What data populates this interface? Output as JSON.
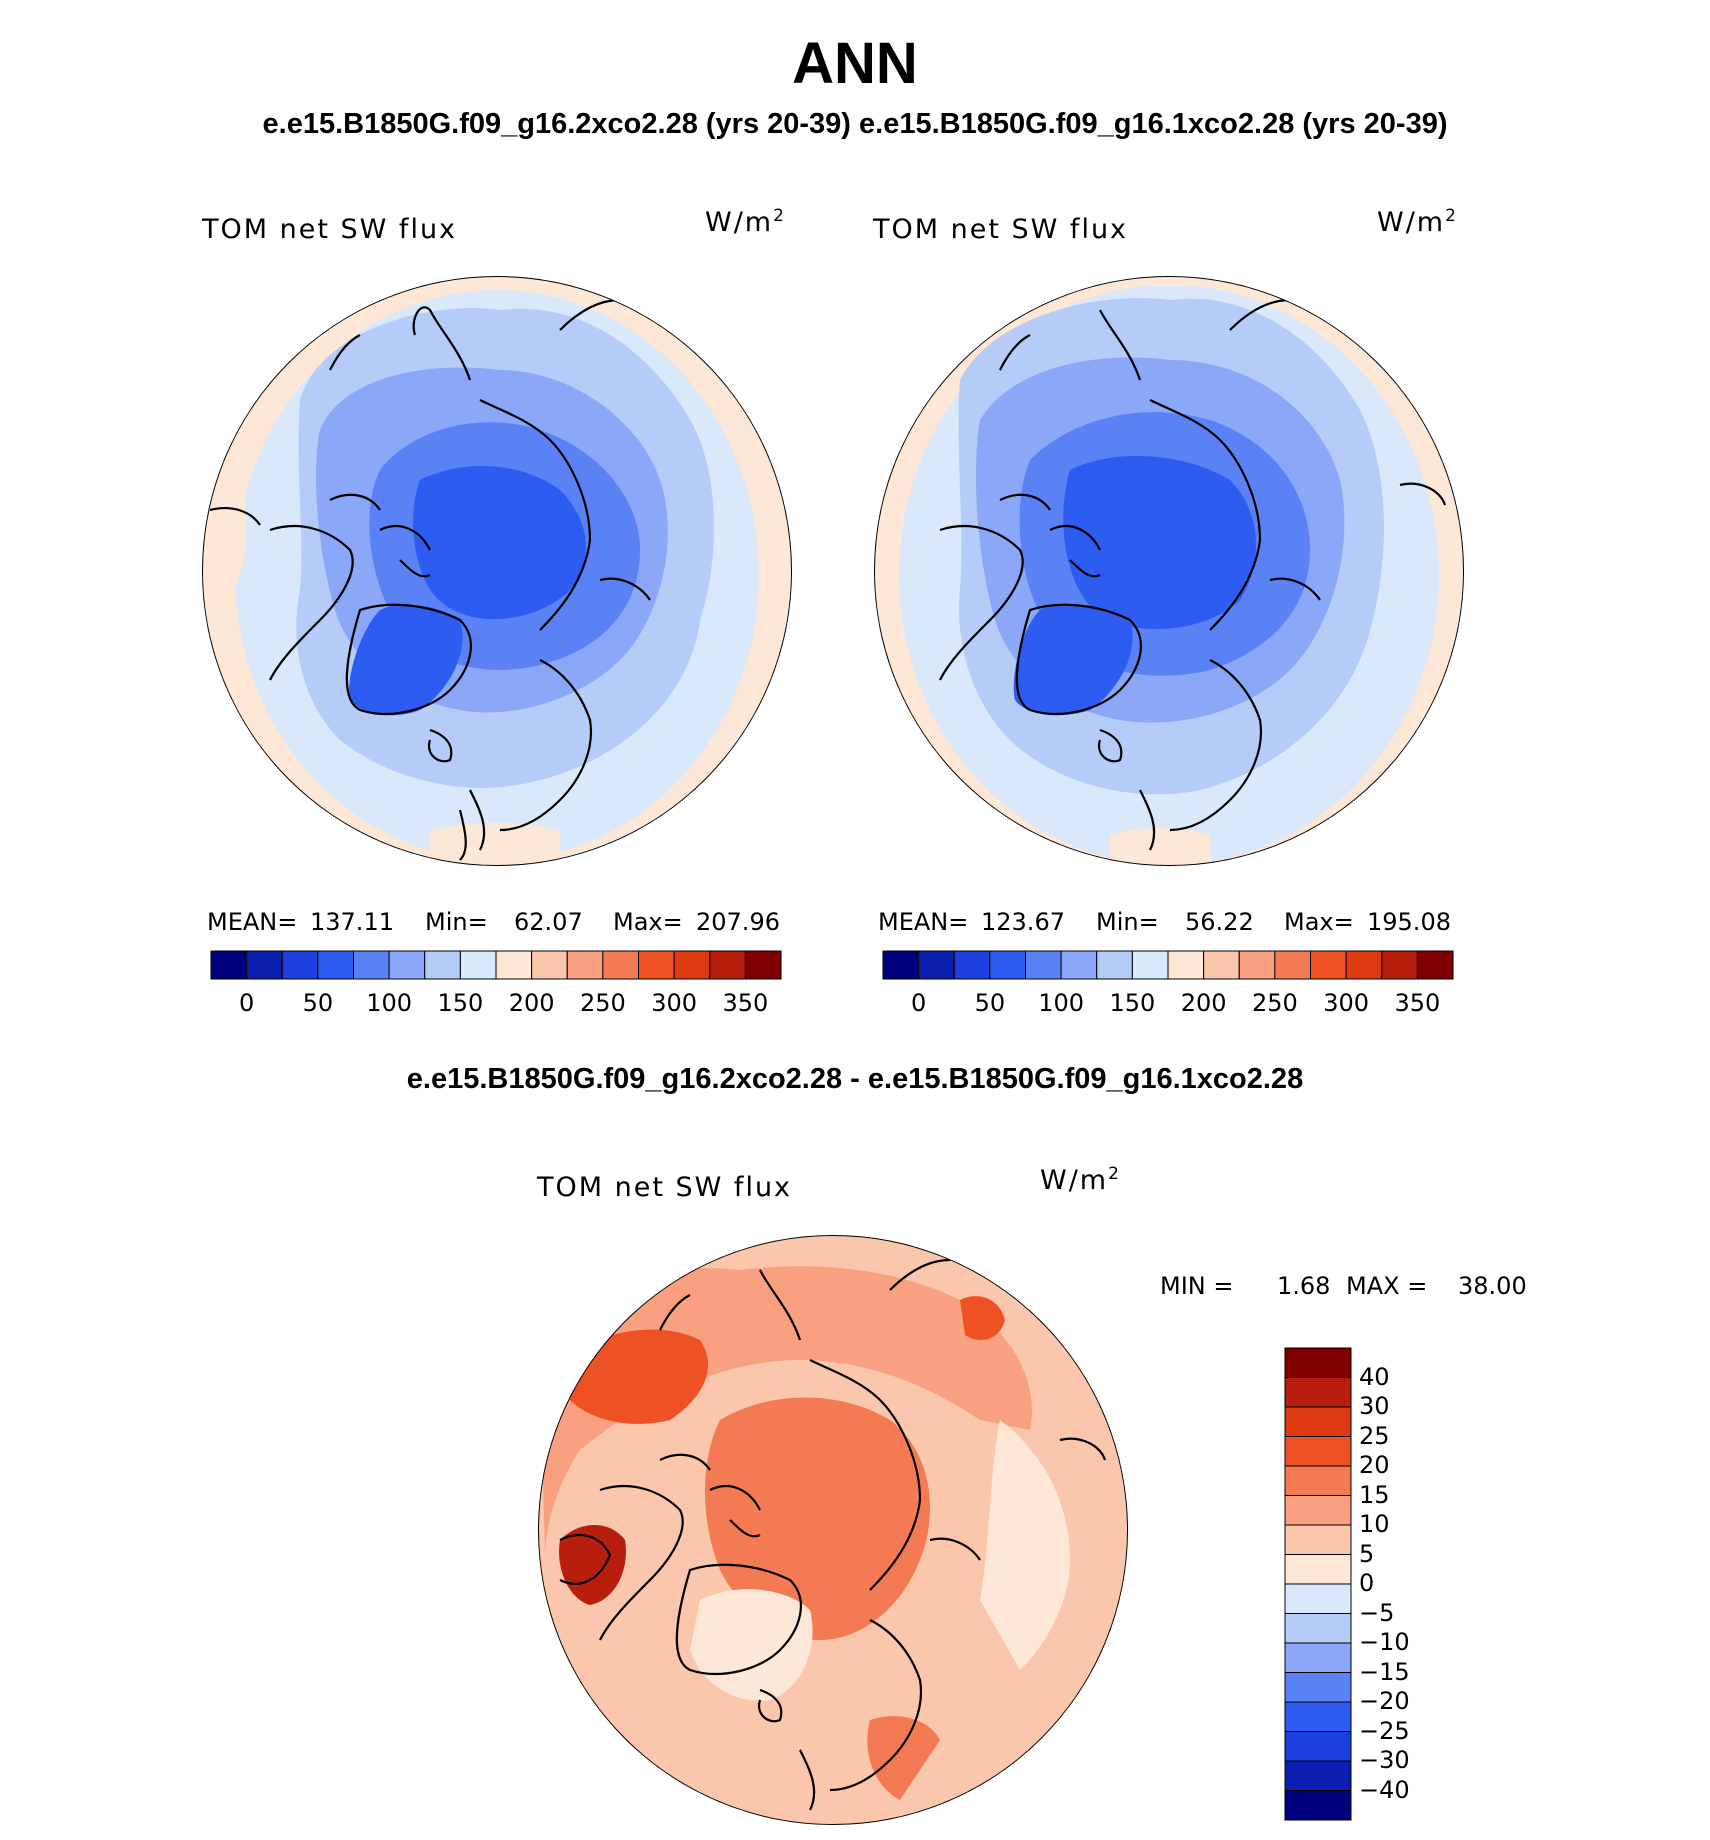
{
  "figure": {
    "title": "ANN",
    "cases_title": "e.e15.B1850G.f09_g16.2xco2.28 (yrs 20-39) e.e15.B1850G.f09_g16.1xco2.28 (yrs 20-39)",
    "diff_title": "e.e15.B1850G.f09_g16.2xco2.28 - e.e15.B1850G.f09_g16.1xco2.28"
  },
  "panels": [
    {
      "variable": "TOM net SW flux",
      "units": "W/m",
      "units_exp": "2",
      "mean_label": "MEAN=",
      "mean": "137.11",
      "min_label": "Min=",
      "min": "62.07",
      "max_label": "Max=",
      "max": "207.96"
    },
    {
      "variable": "TOM net SW flux",
      "units": "W/m",
      "units_exp": "2",
      "mean_label": "MEAN=",
      "mean": "123.67",
      "min_label": "Min=",
      "min": "56.22",
      "max_label": "Max=",
      "max": "195.08"
    }
  ],
  "diff_panel": {
    "variable": "TOM net SW flux",
    "units": "W/m",
    "units_exp": "2",
    "min_label": "MIN =",
    "min": "1.68",
    "max_label": "MAX =",
    "max": "38.00"
  },
  "abs_colorbar": {
    "tick_labels": [
      "0",
      "50",
      "100",
      "150",
      "200",
      "250",
      "300",
      "350"
    ],
    "colors": [
      "#00007f",
      "#0a1fb0",
      "#1e3fe0",
      "#2d5cf0",
      "#5a82f5",
      "#8aa8f7",
      "#b5cbf8",
      "#d9e8fb",
      "#fde7d6",
      "#fbc7ac",
      "#f8a07f",
      "#f47a53",
      "#ee5224",
      "#dd3a12",
      "#b81e0e",
      "#800000"
    ]
  },
  "diff_colorbar": {
    "tick_labels": [
      "40",
      "30",
      "25",
      "20",
      "15",
      "10",
      "5",
      "0",
      "−5",
      "−10",
      "−15",
      "−20",
      "−25",
      "−30",
      "−40"
    ],
    "colors": [
      "#800000",
      "#b81e0e",
      "#dd3a12",
      "#ee5224",
      "#f47a53",
      "#f8a07f",
      "#fbc7ac",
      "#fde7d6",
      "#d9e8fb",
      "#b5cbf8",
      "#8aa8f7",
      "#5a82f5",
      "#2d5cf0",
      "#1e3fe0",
      "#0a1fb0",
      "#00007f"
    ]
  },
  "map_colors": {
    "warm_edge": "#fde7d6",
    "blue_1": "#d9e8fb",
    "blue_2": "#b5cbf8",
    "blue_3": "#8aa8f7",
    "blue_4": "#5a82f5",
    "blue_5": "#2d5cf0",
    "red_1": "#fde7d6",
    "red_2": "#fbc7ac",
    "red_3": "#f8a07f",
    "red_4": "#f47a53",
    "red_5": "#ee5224",
    "red_6": "#b81e0e"
  }
}
